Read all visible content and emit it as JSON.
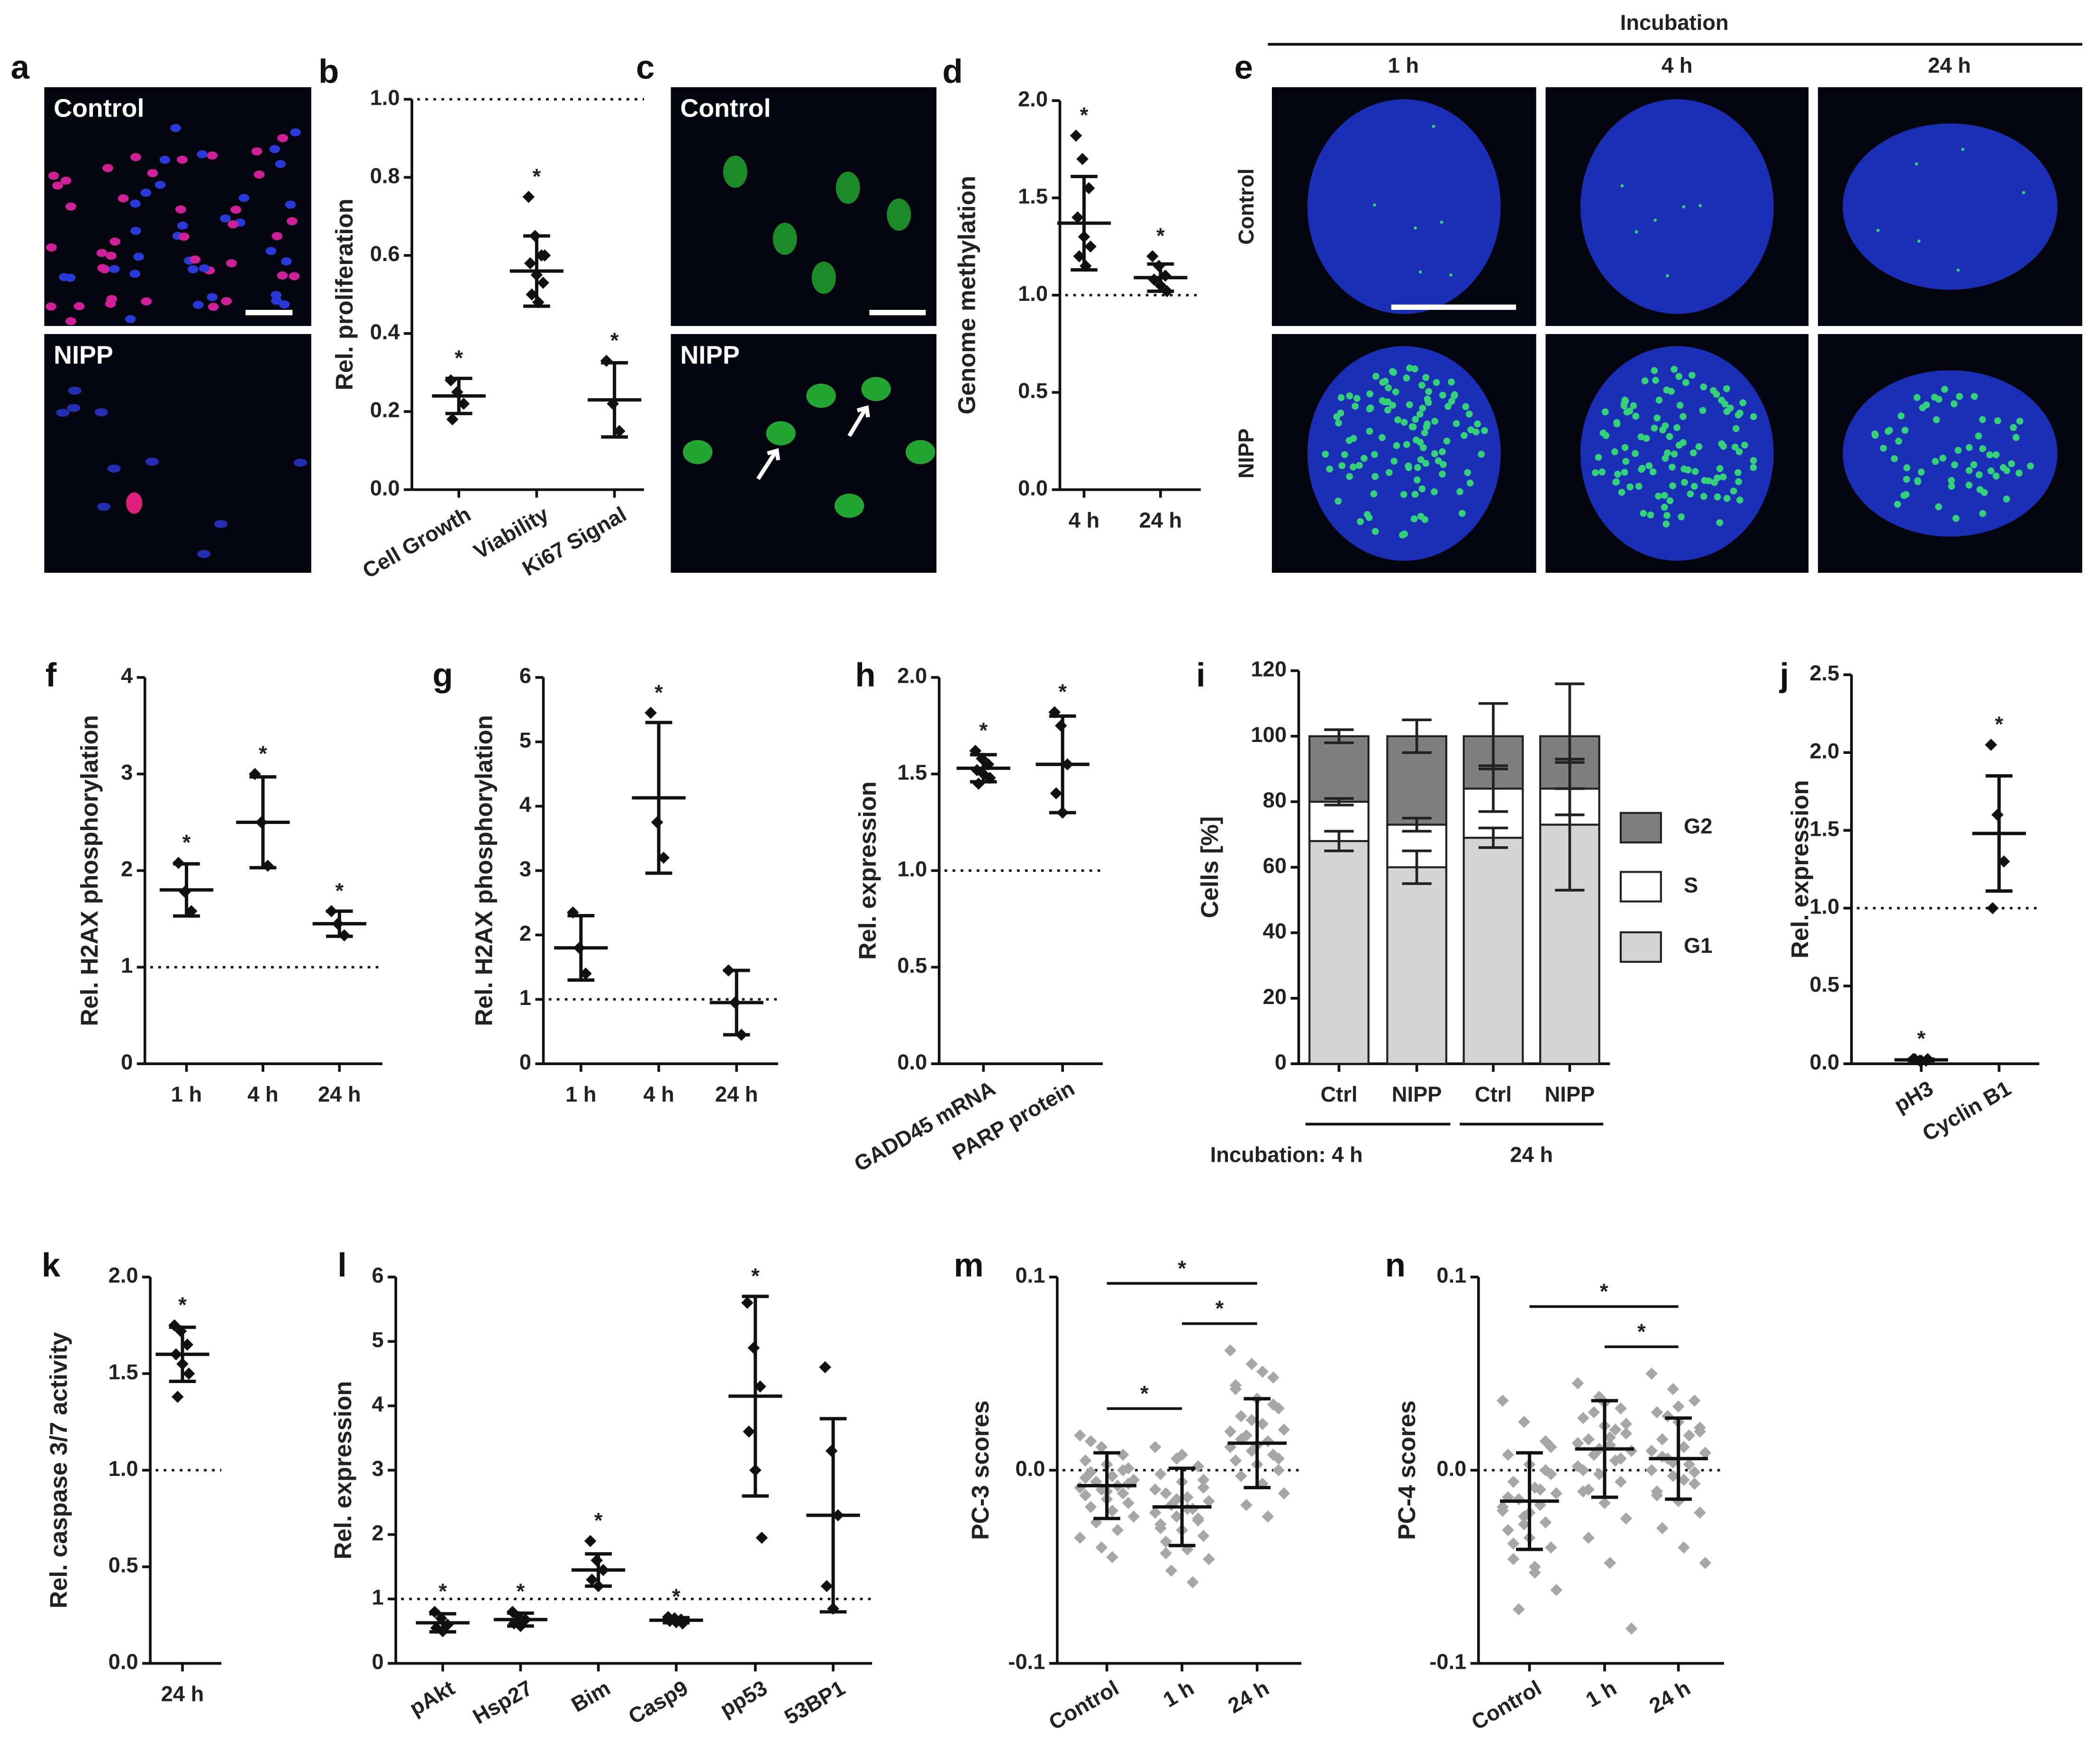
{
  "image_panels": [
    {
      "label": "a",
      "rows": [
        "Control",
        "NIPP"
      ]
    },
    {
      "label": "c",
      "rows": [
        "Control",
        "NIPP"
      ]
    },
    {
      "label": "e",
      "title": "Incubation",
      "columns": [
        "1 h",
        "4 h",
        "24 h"
      ],
      "rows": [
        "Control",
        "NIPP"
      ]
    }
  ],
  "chart_data": [
    {
      "type": "dot",
      "label": "b",
      "ylabel": "Rel. proliferation",
      "categories": [
        "Cell Growth",
        "Viability",
        "Ki67 Signal"
      ],
      "points": [
        [
          0.28,
          0.25,
          0.22,
          0.18
        ],
        [
          0.75,
          0.65,
          0.6,
          0.58,
          0.55,
          0.53,
          0.5,
          0.48,
          0.6
        ],
        [
          0.33,
          0.22,
          0.15
        ]
      ],
      "means": [
        0.24,
        0.56,
        0.23
      ],
      "sd": [
        0.045,
        0.09,
        0.095
      ],
      "stars": [
        "*",
        "*",
        "*"
      ],
      "ref_line": 1,
      "color": "#111111",
      "ylim": [
        0,
        1
      ],
      "yticks": [
        {
          "value": 0,
          "label": "0.0"
        },
        0.2,
        0.4,
        0.6,
        0.8,
        {
          "value": 1,
          "label": "1.0"
        }
      ]
    },
    {
      "type": "dot",
      "label": "d",
      "ylabel": "Genome methylation",
      "categories": [
        "4 h",
        "24 h"
      ],
      "points": [
        [
          1.82,
          1.7,
          1.55,
          1.4,
          1.3,
          1.25,
          1.2,
          1.15
        ],
        [
          1.2,
          1.15,
          1.1,
          1.08,
          1.05,
          1.02
        ]
      ],
      "means": [
        1.37,
        1.09
      ],
      "sd": [
        0.24,
        0.07
      ],
      "stars": [
        "*",
        "*"
      ],
      "ref_line": 1,
      "color": "#111111",
      "ylim": [
        0,
        2
      ],
      "yticks": [
        {
          "value": 0,
          "label": "0.0"
        },
        0.5,
        {
          "value": 1,
          "label": "1.0"
        },
        1.5,
        {
          "value": 2,
          "label": "2.0"
        }
      ]
    },
    {
      "type": "dot",
      "label": "f",
      "ylabel": "Rel. H2AX phosphorylation",
      "categories": [
        "1 h",
        "4 h",
        "24 h"
      ],
      "points": [
        [
          2.08,
          1.78,
          1.58
        ],
        [
          3.0,
          2.5,
          2.05
        ],
        [
          1.58,
          1.45,
          1.33
        ]
      ],
      "means": [
        1.8,
        2.5,
        1.45
      ],
      "sd": [
        0.27,
        0.47,
        0.13
      ],
      "stars": [
        "*",
        "*",
        "*"
      ],
      "ref_line": 1,
      "color": "#111111",
      "ylim": [
        0,
        4
      ],
      "yticks": [
        0,
        1,
        2,
        3,
        4
      ]
    },
    {
      "type": "dot",
      "label": "g",
      "ylabel": "Rel. H2AX phosphorylation",
      "categories": [
        "1 h",
        "4 h",
        "24 h"
      ],
      "points": [
        [
          2.35,
          1.8,
          1.4
        ],
        [
          5.45,
          3.75,
          3.2
        ],
        [
          1.45,
          0.95,
          0.45
        ]
      ],
      "means": [
        1.8,
        4.13,
        0.95
      ],
      "sd": [
        0.5,
        1.17,
        0.5
      ],
      "stars": [
        null,
        "*",
        null
      ],
      "ref_line": 1,
      "color": "#111111",
      "ylim": [
        0,
        6
      ],
      "yticks": [
        0,
        1,
        2,
        3,
        4,
        5,
        6
      ]
    },
    {
      "type": "dot",
      "label": "h",
      "ylabel": "Rel. expression",
      "categories": [
        "GADD45 mRNA",
        "PARP protein"
      ],
      "points": [
        [
          1.62,
          1.58,
          1.55,
          1.52,
          1.5,
          1.48,
          1.45
        ],
        [
          1.82,
          1.75,
          1.55,
          1.4,
          1.3
        ]
      ],
      "means": [
        1.53,
        1.55
      ],
      "sd": [
        0.07,
        0.25
      ],
      "stars": [
        "*",
        "*"
      ],
      "ref_line": 1,
      "color": "#111111",
      "ylim": [
        0,
        2
      ],
      "yticks": [
        {
          "value": 0,
          "label": "0.0"
        },
        0.5,
        {
          "value": 1,
          "label": "1.0"
        },
        1.5,
        {
          "value": 2,
          "label": "2.0"
        }
      ]
    },
    {
      "type": "stacked_bar",
      "label": "i",
      "ylabel": "Cells [%]",
      "categories": [
        "Ctrl",
        "NIPP",
        "Ctrl",
        "NIPP"
      ],
      "groups": [
        "Incubation: 4 h",
        "24 h"
      ],
      "series": [
        {
          "name": "G1",
          "color": "#d4d4d4",
          "values": [
            68,
            60,
            69,
            73
          ],
          "errors": [
            3,
            5,
            3,
            20
          ]
        },
        {
          "name": "S",
          "color": "#ffffff",
          "values": [
            12,
            13,
            15,
            11
          ],
          "errors": [
            1,
            2,
            7,
            8
          ]
        },
        {
          "name": "G2",
          "color": "#7f7f7f",
          "values": [
            20,
            27,
            16,
            16
          ],
          "errors": [
            2,
            5,
            10,
            16
          ]
        }
      ],
      "ylim": [
        0,
        120
      ],
      "yticks": [
        0,
        20,
        40,
        60,
        80,
        100,
        120
      ]
    },
    {
      "type": "dot",
      "label": "j",
      "ylabel": "Rel. expression",
      "categories": [
        "pH3",
        "Cyclin B1"
      ],
      "points": [
        [
          0.03,
          0.02,
          0.02,
          0.03,
          0.02,
          0.03
        ],
        [
          2.05,
          1.6,
          1.3,
          1.0
        ]
      ],
      "means": [
        0.025,
        1.48
      ],
      "sd": [
        0.005,
        0.37
      ],
      "stars": [
        "*",
        "*"
      ],
      "ref_line": 1,
      "color": "#111111",
      "ylim": [
        0,
        2.5
      ],
      "yticks": [
        {
          "value": 0,
          "label": "0.0"
        },
        0.5,
        {
          "value": 1,
          "label": "1.0"
        },
        1.5,
        {
          "value": 2,
          "label": "2.0"
        },
        2.5
      ]
    },
    {
      "type": "dot",
      "label": "k",
      "ylabel": "Rel. caspase 3/7 activity",
      "categories": [
        "24 h"
      ],
      "points": [
        [
          1.75,
          1.72,
          1.65,
          1.6,
          1.55,
          1.5,
          1.38
        ]
      ],
      "means": [
        1.6
      ],
      "sd": [
        0.14
      ],
      "stars": [
        "*"
      ],
      "ref_line": 1,
      "color": "#111111",
      "ylim": [
        0,
        2
      ],
      "yticks": [
        {
          "value": 0,
          "label": "0.0"
        },
        0.5,
        {
          "value": 1,
          "label": "1.0"
        },
        1.5,
        {
          "value": 2,
          "label": "2.0"
        }
      ]
    },
    {
      "type": "dot",
      "label": "l",
      "ylabel": "Rel. expression",
      "categories": [
        "pAkt",
        "Hsp27",
        "Bim",
        "Casp9",
        "pp53",
        "53BP1"
      ],
      "points": [
        [
          0.8,
          0.7,
          0.6,
          0.55,
          0.5
        ],
        [
          0.8,
          0.72,
          0.68,
          0.62,
          0.58
        ],
        [
          1.9,
          1.6,
          1.45,
          1.3,
          1.2
        ],
        [
          0.72,
          0.7,
          0.68,
          0.66,
          0.64,
          0.62
        ],
        [
          5.6,
          4.9,
          4.3,
          3.6,
          3.0,
          1.95
        ],
        [
          4.6,
          3.3,
          2.3,
          1.2,
          0.85
        ]
      ],
      "means": [
        0.63,
        0.68,
        1.45,
        0.67,
        4.15,
        2.3
      ],
      "sd": [
        0.14,
        0.1,
        0.25,
        0.04,
        1.55,
        1.5
      ],
      "stars": [
        "*",
        "*",
        "*",
        "*",
        "*",
        null
      ],
      "ref_line": 1,
      "color": "#111111",
      "ylim": [
        0,
        6
      ],
      "yticks": [
        0,
        1,
        2,
        3,
        4,
        5,
        6
      ]
    },
    {
      "type": "dot",
      "label": "m",
      "ylabel": "PC-3 scores",
      "categories": [
        "Control",
        "1 h",
        "24 h"
      ],
      "points": [
        [
          0.018,
          0.012,
          0.008,
          0.005,
          0.003,
          0.001,
          -0.001,
          -0.003,
          -0.005,
          -0.006,
          -0.008,
          -0.009,
          -0.01,
          -0.012,
          -0.013,
          -0.015,
          -0.017,
          -0.019,
          -0.021,
          -0.024,
          -0.027,
          -0.031,
          -0.035,
          -0.04,
          0.0,
          -0.004,
          -0.011,
          -0.007,
          0.015,
          -0.045
        ],
        [
          0.012,
          0.006,
          0.002,
          -0.002,
          -0.006,
          -0.009,
          -0.012,
          -0.014,
          -0.016,
          -0.018,
          -0.02,
          -0.022,
          -0.024,
          -0.026,
          -0.028,
          -0.031,
          -0.034,
          -0.037,
          -0.041,
          -0.046,
          -0.052,
          -0.058,
          -0.01,
          -0.015,
          -0.025,
          -0.03,
          0.008,
          -0.005,
          -0.043,
          -0.02
        ],
        [
          0.062,
          0.055,
          0.048,
          0.042,
          0.037,
          0.032,
          0.028,
          0.024,
          0.021,
          0.018,
          0.015,
          0.012,
          0.01,
          0.008,
          0.005,
          0.003,
          0.0,
          -0.003,
          -0.007,
          -0.012,
          -0.018,
          -0.024,
          0.02,
          0.026,
          0.034,
          0.044,
          0.013,
          0.006,
          0.016,
          0.051
        ]
      ],
      "means": [
        -0.008,
        -0.019,
        0.014
      ],
      "sd": [
        0.017,
        0.02,
        0.023
      ],
      "ref_line": 0,
      "color": "#111111",
      "point_color": "#a6a6a6",
      "comparisons": [
        {
          "pair": [
            0,
            2
          ],
          "label": "*"
        },
        {
          "pair": [
            0,
            1
          ],
          "label": "*"
        },
        {
          "pair": [
            1,
            2
          ],
          "label": "*"
        }
      ],
      "ylim": [
        -0.1,
        0.1
      ],
      "yticks": [
        -0.1,
        {
          "value": 0,
          "label": "0.0"
        },
        0.1
      ]
    },
    {
      "type": "dot",
      "label": "n",
      "ylabel": "PC-4 scores",
      "categories": [
        "Control",
        "1 h",
        "24 h"
      ],
      "points": [
        [
          0.036,
          0.025,
          0.015,
          0.008,
          0.003,
          -0.002,
          -0.006,
          -0.009,
          -0.012,
          -0.015,
          -0.018,
          -0.021,
          -0.024,
          -0.027,
          -0.031,
          -0.035,
          -0.04,
          -0.046,
          -0.053,
          -0.062,
          -0.072,
          -0.01,
          -0.019,
          -0.028,
          0.0,
          -0.014,
          -0.022,
          0.012,
          -0.038,
          -0.05
        ],
        [
          0.045,
          0.038,
          0.032,
          0.027,
          0.023,
          0.019,
          0.016,
          0.013,
          0.01,
          0.008,
          0.005,
          0.002,
          -0.002,
          -0.006,
          -0.011,
          -0.017,
          -0.025,
          -0.035,
          -0.048,
          -0.082,
          0.03,
          0.021,
          0.014,
          0.011,
          0.006,
          0.0,
          0.035,
          0.024,
          -0.01,
          0.017
        ],
        [
          0.05,
          0.042,
          0.036,
          0.03,
          0.025,
          0.02,
          0.016,
          0.012,
          0.009,
          0.006,
          0.003,
          0.0,
          -0.003,
          -0.007,
          -0.011,
          -0.016,
          -0.022,
          -0.03,
          -0.04,
          -0.048,
          0.028,
          0.018,
          0.01,
          0.004,
          -0.001,
          -0.013,
          0.033,
          0.022,
          0.007,
          -0.005
        ]
      ],
      "means": [
        -0.016,
        0.011,
        0.006
      ],
      "sd": [
        0.025,
        0.025,
        0.021
      ],
      "ref_line": 0,
      "color": "#111111",
      "point_color": "#a6a6a6",
      "comparisons": [
        {
          "pair": [
            0,
            2
          ],
          "label": "*"
        },
        {
          "pair": [
            1,
            2
          ],
          "label": "*"
        }
      ],
      "ylim": [
        -0.1,
        0.1
      ],
      "yticks": [
        -0.1,
        {
          "value": 0,
          "label": "0.0"
        },
        0.1
      ]
    }
  ]
}
